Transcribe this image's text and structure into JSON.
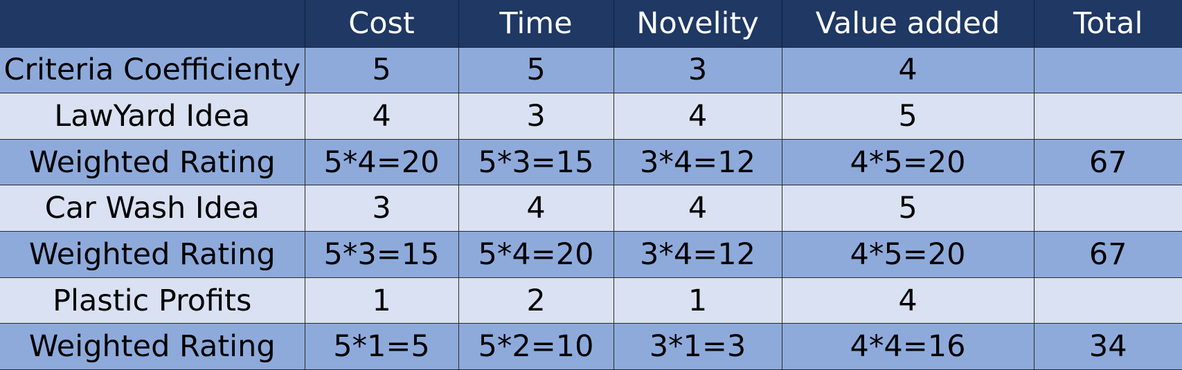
{
  "table": {
    "header": [
      "",
      "Cost",
      "Time",
      "Novelity",
      "Value added",
      "Total"
    ],
    "rows": [
      [
        "Criteria Coefficienty",
        "5",
        "5",
        "3",
        "4",
        ""
      ],
      [
        "LawYard Idea",
        "4",
        "3",
        "4",
        "5",
        ""
      ],
      [
        "Weighted Rating",
        "5*4=20",
        "5*3=15",
        "3*4=12",
        "4*5=20",
        "67"
      ],
      [
        "Car Wash Idea",
        "3",
        "4",
        "4",
        "5",
        ""
      ],
      [
        "Weighted Rating",
        "5*3=15",
        "5*4=20",
        "3*4=12",
        "4*5=20",
        "67"
      ],
      [
        "Plastic Profits",
        "1",
        "2",
        "1",
        "4",
        ""
      ],
      [
        "Weighted Rating",
        "5*1=5",
        "5*2=10",
        "3*1=3",
        "4*4=16",
        "34"
      ]
    ]
  },
  "colors": {
    "header_bg": "#1f3864",
    "band_dark": "#8eaadb",
    "band_light": "#d9e1f2"
  }
}
